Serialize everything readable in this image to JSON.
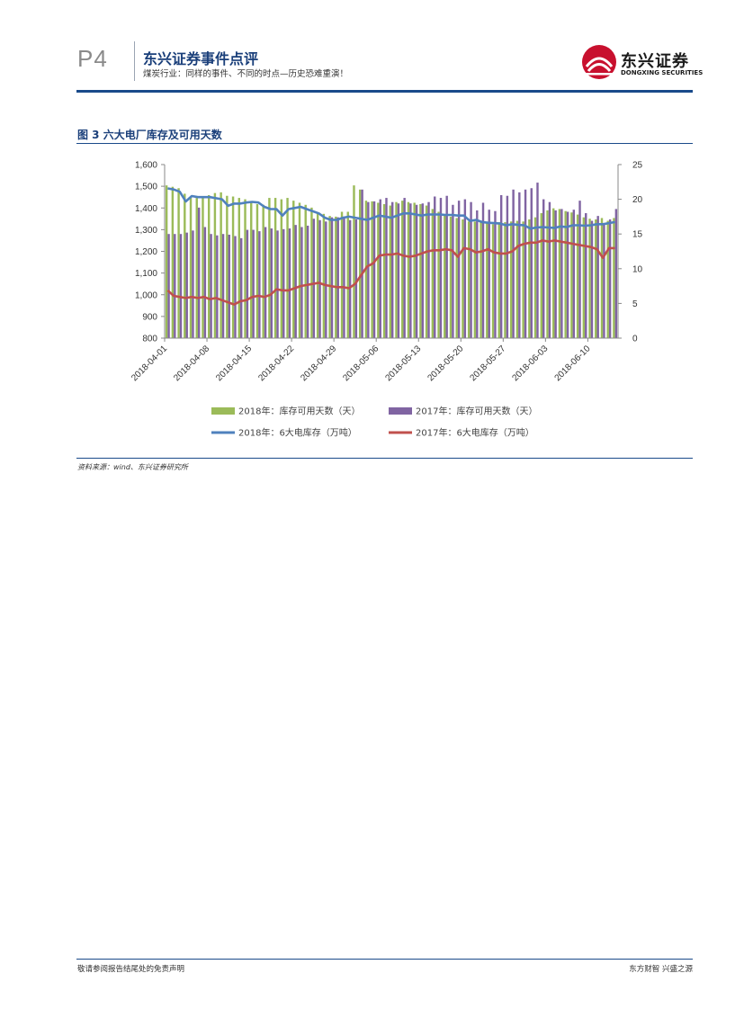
{
  "header": {
    "page_num": "P4",
    "report_title": "东兴证券事件点评",
    "report_subtitle": "煤炭行业：同样的事件、不同的时点—历史恐难重演！",
    "logo_cn": "东兴证券",
    "logo_en": "DONGXING SECURITIES"
  },
  "figure": {
    "title": "图 3 六大电厂库存及可用天数",
    "source": "资料来源：wind、东兴证券研究所"
  },
  "footer": {
    "left": "敬请参阅报告结尾处的免责声明",
    "right": "东方财智 兴盛之源"
  },
  "colors": {
    "bar_2018": "#9bbb59",
    "bar_2017": "#8064a2",
    "line_2018": "#4f81bd",
    "line_2017": "#c0504d",
    "brand": "#1a3f7a",
    "logo_red": "#c8102e"
  },
  "chart_data": {
    "type": "bar+line",
    "title": "",
    "x_ticks": [
      "2018-04-01",
      "2018-04-08",
      "2018-04-15",
      "2018-04-22",
      "2018-04-29",
      "2018-05-06",
      "2018-05-13",
      "2018-05-20",
      "2018-05-27",
      "2018-06-03",
      "2018-06-10"
    ],
    "y_left": {
      "min": 800,
      "max": 1600,
      "step": 100,
      "tick_labels": [
        "800",
        "900",
        "1,000",
        "1,100",
        "1,200",
        "1,300",
        "1,400",
        "1,500",
        "1,600"
      ]
    },
    "y_right": {
      "min": 0,
      "max": 25,
      "step": 5,
      "tick_labels": [
        "0",
        "5",
        "10",
        "15",
        "20",
        "25"
      ]
    },
    "legend": [
      {
        "name": "2018年：库存可用天数（天）",
        "type": "bar",
        "color": "#9bbb59"
      },
      {
        "name": "2017年：库存可用天数（天）",
        "type": "bar",
        "color": "#8064a2"
      },
      {
        "name": "2018年：6大电库存（万吨）",
        "type": "line",
        "color": "#4f81bd"
      },
      {
        "name": "2017年：6大电库存（万吨）",
        "type": "line",
        "color": "#c0504d"
      }
    ],
    "legend_position": "bottom",
    "grid": false,
    "series": [
      {
        "name": "2018年：库存可用天数（天）",
        "axis": "right",
        "type": "bar",
        "values": [
          22.0,
          21.8,
          21.6,
          20.8,
          20.4,
          20.3,
          20.2,
          20.6,
          20.9,
          21.0,
          20.5,
          20.4,
          20.2,
          20.0,
          19.7,
          19.3,
          19.2,
          20.2,
          20.2,
          20.0,
          20.2,
          19.8,
          19.5,
          19.2,
          18.8,
          18.0,
          17.9,
          17.6,
          17.5,
          18.2,
          18.2,
          22.0,
          21.4,
          19.8,
          19.7,
          19.5,
          19.3,
          19.1,
          19.6,
          19.8,
          19.6,
          19.5,
          19.3,
          19.1,
          18.6,
          18.2,
          17.8,
          17.5,
          17.3,
          17.1,
          16.8,
          16.8,
          16.7,
          16.6,
          16.4,
          16.7,
          16.7,
          16.8,
          16.9,
          16.8,
          17.1,
          17.4,
          18.0,
          18.4,
          18.7,
          18.6,
          18.3,
          18.1,
          17.8,
          17.4,
          17.2,
          17.1,
          17.3,
          16.9,
          17.3
        ]
      },
      {
        "name": "2017年：库存可用天数（天）",
        "axis": "right",
        "type": "bar",
        "values": [
          15.0,
          15.0,
          15.0,
          15.2,
          15.5,
          18.8,
          16.0,
          15.0,
          14.8,
          15.0,
          14.9,
          14.7,
          14.4,
          15.6,
          15.6,
          15.4,
          16.0,
          15.8,
          15.5,
          15.7,
          15.8,
          16.3,
          16.0,
          16.2,
          17.2,
          17.0,
          16.8,
          17.4,
          17.4,
          17.4,
          17.0,
          17.1,
          21.4,
          19.6,
          19.7,
          20.0,
          20.2,
          19.6,
          19.4,
          20.2,
          19.4,
          19.2,
          19.4,
          19.6,
          20.4,
          20.2,
          20.5,
          19.2,
          19.8,
          20.0,
          19.6,
          18.4,
          19.5,
          18.5,
          18.3,
          20.6,
          20.5,
          21.4,
          21.0,
          21.4,
          21.6,
          22.4,
          20.0,
          19.6,
          18.4,
          18.6,
          18.2,
          18.5,
          19.8,
          18.0,
          16.9,
          17.6,
          16.5,
          17.1,
          18.6
        ]
      },
      {
        "name": "2018年：6大电库存（万吨）",
        "axis": "left",
        "type": "line",
        "values": [
          1490,
          1485,
          1475,
          1430,
          1455,
          1450,
          1450,
          1450,
          1445,
          1440,
          1410,
          1420,
          1420,
          1425,
          1428,
          1425,
          1405,
          1395,
          1395,
          1365,
          1395,
          1400,
          1405,
          1395,
          1385,
          1375,
          1355,
          1345,
          1345,
          1355,
          1360,
          1355,
          1350,
          1345,
          1355,
          1365,
          1360,
          1355,
          1365,
          1375,
          1375,
          1370,
          1365,
          1370,
          1370,
          1370,
          1368,
          1368,
          1365,
          1365,
          1340,
          1345,
          1335,
          1332,
          1330,
          1328,
          1320,
          1325,
          1322,
          1320,
          1305,
          1310,
          1312,
          1310,
          1308,
          1315,
          1312,
          1320,
          1320,
          1318,
          1320,
          1325,
          1325,
          1330,
          1335
        ]
      },
      {
        "name": "2017年：6大电库存（万吨）",
        "axis": "left",
        "type": "line",
        "values": [
          1020,
          995,
          990,
          985,
          990,
          985,
          990,
          980,
          985,
          975,
          965,
          955,
          970,
          975,
          990,
          995,
          990,
          1000,
          1025,
          1020,
          1020,
          1030,
          1040,
          1045,
          1050,
          1055,
          1045,
          1040,
          1035,
          1035,
          1030,
          1050,
          1090,
          1130,
          1145,
          1180,
          1185,
          1185,
          1190,
          1180,
          1175,
          1180,
          1190,
          1200,
          1205,
          1205,
          1210,
          1205,
          1175,
          1215,
          1210,
          1195,
          1200,
          1210,
          1195,
          1190,
          1190,
          1200,
          1225,
          1235,
          1240,
          1240,
          1250,
          1245,
          1250,
          1245,
          1240,
          1235,
          1230,
          1225,
          1220,
          1210,
          1170,
          1215,
          1215
        ]
      }
    ]
  }
}
